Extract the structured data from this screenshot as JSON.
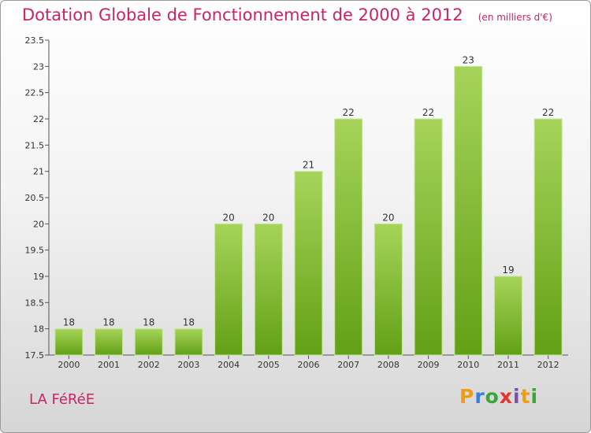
{
  "header": {
    "title": "Dotation Globale de Fonctionnement de 2000 à 2012",
    "unit": "(en milliers d'€)"
  },
  "footer": {
    "commune": "LA FéRéE",
    "logo_letters": [
      "P",
      "r",
      "o",
      "x",
      "i",
      "t",
      "i"
    ],
    "logo_colors": [
      "#f39c12",
      "#3a7fd5",
      "#3aa637",
      "#e5332a",
      "#7b4fb0",
      "#f39c12",
      "#3aa637"
    ]
  },
  "colors": {
    "bar_light": "#a6d45a",
    "bar_dark": "#62a016",
    "text_accent": "#cc2266"
  },
  "chart_data": {
    "type": "bar",
    "title": "Dotation Globale de Fonctionnement de 2000 à 2012",
    "subtitle": "(en milliers d'€)",
    "categories": [
      "2000",
      "2001",
      "2002",
      "2003",
      "2004",
      "2005",
      "2006",
      "2007",
      "2008",
      "2009",
      "2010",
      "2011",
      "2012"
    ],
    "values": [
      18,
      18,
      18,
      18,
      20,
      20,
      21,
      22,
      20,
      22,
      23,
      19,
      22
    ],
    "ylim": [
      17.5,
      23.5
    ],
    "yticks": [
      "17.5",
      "18",
      "18.5",
      "19",
      "19.5",
      "20",
      "20.5",
      "21",
      "21.5",
      "22",
      "22.5",
      "23",
      "23.5"
    ],
    "xlabel": "",
    "ylabel": "",
    "grid": false
  }
}
